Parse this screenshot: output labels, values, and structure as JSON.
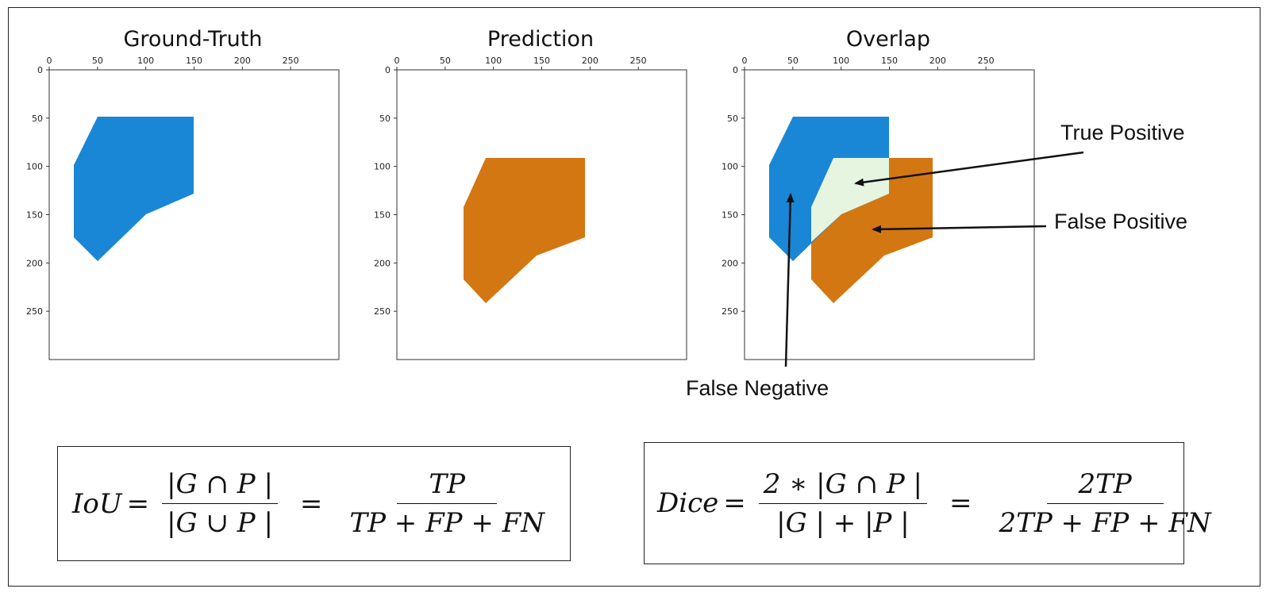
{
  "panels": [
    {
      "title": "Ground-Truth",
      "x_ticks": [
        "0",
        "50",
        "100",
        "150",
        "200",
        "250"
      ],
      "y_ticks": [
        "0",
        "50",
        "100",
        "150",
        "200",
        "250"
      ]
    },
    {
      "title": "Prediction",
      "x_ticks": [
        "0",
        "50",
        "100",
        "150",
        "200",
        "250"
      ],
      "y_ticks": [
        "0",
        "50",
        "100",
        "150",
        "200",
        "250"
      ]
    },
    {
      "title": "Overlap",
      "x_ticks": [
        "0",
        "50",
        "100",
        "150",
        "200",
        "250"
      ],
      "y_ticks": [
        "0",
        "50",
        "100",
        "150",
        "200",
        "250"
      ]
    }
  ],
  "callouts": {
    "true_positive": "True Positive",
    "false_positive": "False Positive",
    "false_negative": "False Negative"
  },
  "colors": {
    "ground_truth": "#1a86d6",
    "prediction": "#d37712",
    "true_positive": "#e5f5e0"
  },
  "iou": {
    "lhs": "IoU",
    "eq": "=",
    "num1": "|G ∩ P |",
    "den1": "|G ∪ P |",
    "eq2": "=",
    "num2": "TP",
    "den2": "TP + FP + FN"
  },
  "dice": {
    "lhs": "Dice",
    "eq": "=",
    "num1": "2 ∗ |G ∩ P |",
    "den1": "|G | + |P |",
    "eq2": "=",
    "num2": "2TP",
    "den2": "2TP + FP + FN"
  }
}
